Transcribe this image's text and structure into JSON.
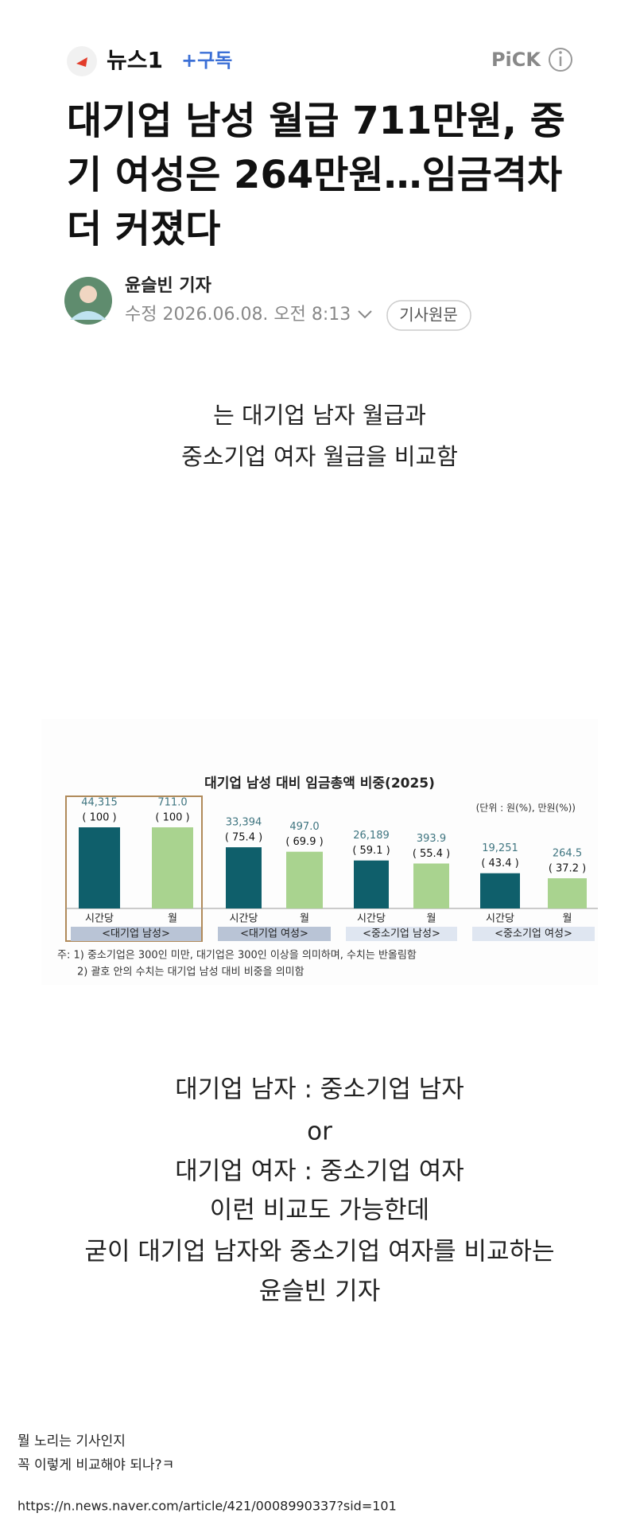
{
  "header": {
    "brand": "뉴스1",
    "subscribe": "+구독",
    "pick": "PiCK"
  },
  "article": {
    "title_lines": [
      "대기업 남성 월급 711만원, 중",
      "기 여성은 264만원…임금격차",
      "더 커졌다"
    ],
    "author": "윤슬빈 기자",
    "date": "수정 2026.06.08. 오전 8:13",
    "original_button": "기사원문"
  },
  "intro": [
    "는 대기업 남자 월급과",
    "중소기업 여자 월급을 비교함"
  ],
  "chart": {
    "type": "bar",
    "title": "대기업 남성 대비 임금총액 비중(2025)",
    "unit": "(단위 : 원(%), 만원(%))",
    "categories": [
      "<대기업 남성>",
      "<대기업 여성>",
      "<중소기업 남성>",
      "<중소기업 여성>"
    ],
    "ylim": [
      0,
      100
    ],
    "series": [
      {
        "name": "시간당",
        "color": "#0f5f6b",
        "values": [
          100,
          75.4,
          59.1,
          43.4
        ],
        "value_labels": [
          "( 100 )",
          "( 75.4 )",
          "( 59.1 )",
          "( 43.4 )"
        ],
        "amount_labels": [
          "44,315",
          "33,394",
          "26,189",
          "19,251"
        ]
      },
      {
        "name": "월",
        "color": "#a9d38f",
        "values": [
          100,
          69.9,
          55.4,
          37.2
        ],
        "value_labels": [
          "( 100 )",
          "( 69.9 )",
          "( 55.4 )",
          "( 37.2 )"
        ],
        "amount_labels": [
          "711.0",
          "497.0",
          "393.9",
          "264.5"
        ]
      }
    ],
    "notes": [
      "주: 1) 중소기업은 300인 미만, 대기업은 300인 이상을 의미하며, 수치는 반올림함",
      "2) 괄호 안의 수치는 대기업 남성 대비 비중을 의미함"
    ]
  },
  "body": [
    "대기업 남자 : 중소기업 남자",
    "or",
    "대기업 여자 : 중소기업 여자",
    "이런 비교도 가능한데",
    "굳이 대기업 남자와 중소기업 여자를 비교하는",
    "윤슬빈 기자"
  ],
  "comments": [
    "뭘 노리는 기사인지",
    "꼭 이렇게 비교해야 되나?ㅋ"
  ],
  "url": "https://n.news.naver.com/article/421/0008990337?sid=101"
}
